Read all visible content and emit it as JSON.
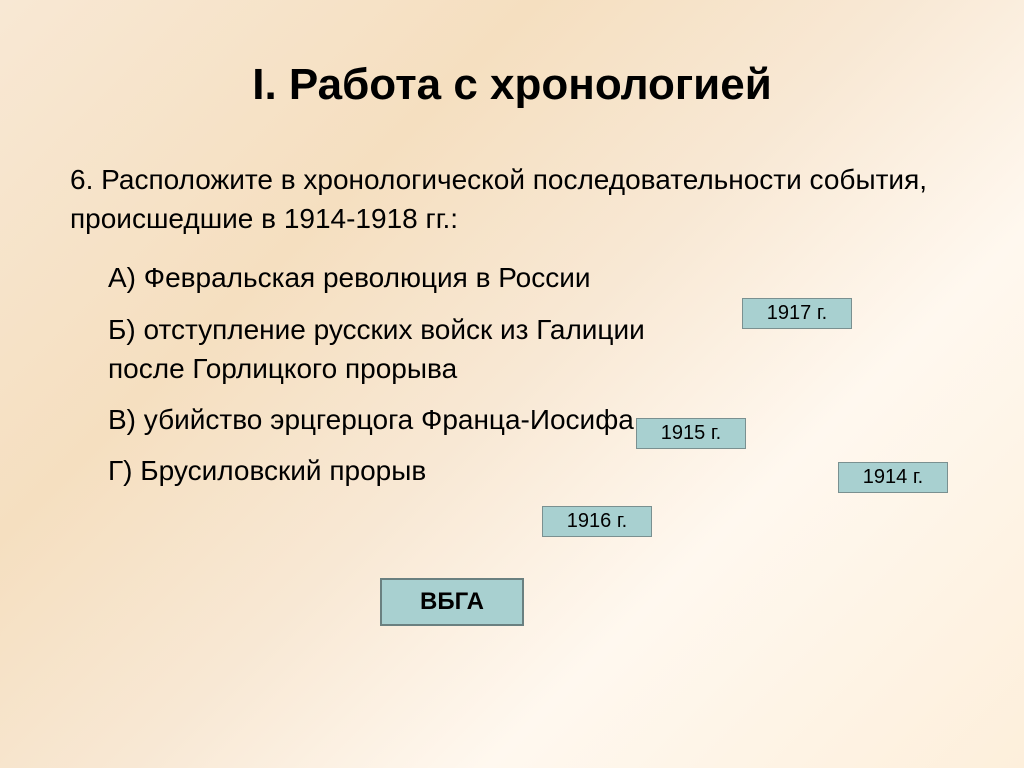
{
  "slide": {
    "title": "I. Работа с хронологией",
    "question": {
      "number": "6.",
      "text": "Расположите в хронологической последовательности события, происшедшие в 1914-1918 гг.:"
    },
    "options": {
      "a": {
        "label": "А)",
        "text": "Февральская революция в России",
        "year": "1917 г."
      },
      "b": {
        "label": "Б)",
        "text_line1": "отступление русских войск из Галиции",
        "text_line2": "после Горлицкого прорыва",
        "year": "1915 г."
      },
      "v": {
        "label": "В)",
        "text": "убийство эрцгерцога Франца-Иосифа",
        "year": "1914 г."
      },
      "g": {
        "label": "Г)",
        "text": "Брусиловский прорыв",
        "year": "1916 г."
      }
    },
    "answer": "ВБГА"
  },
  "styling": {
    "background_gradient": [
      "#f8e8d4",
      "#f5dfc0",
      "#f8e8d4",
      "#fff8ef",
      "#fdefdb"
    ],
    "title_fontsize": 44,
    "body_fontsize": 28,
    "year_box_fontsize": 20,
    "answer_box_fontsize": 24,
    "year_box_bg": "#a8d0d0",
    "year_box_border": "#7a9090",
    "answer_box_bg": "#a8d0d0",
    "answer_box_border": "#6a8080",
    "text_color": "#000000"
  }
}
